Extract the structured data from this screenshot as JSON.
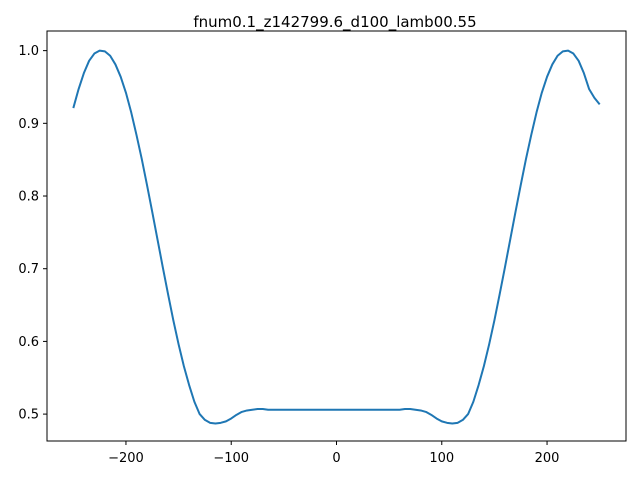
{
  "chart_data": {
    "type": "line",
    "title": "fnum0.1_z142799.6_d100_lamb00.55",
    "xlabel": "",
    "ylabel": "",
    "xlim": [
      -275,
      275
    ],
    "ylim": [
      0.463,
      1.027
    ],
    "grid": false,
    "legend": "none",
    "x_ticks": [
      -200,
      -100,
      0,
      100,
      200
    ],
    "x_tick_labels": [
      "−200",
      "−100",
      "0",
      "100",
      "200"
    ],
    "y_ticks": [
      0.5,
      0.6,
      0.7,
      0.8,
      0.9,
      1.0
    ],
    "y_tick_labels": [
      "0.5",
      "0.6",
      "0.7",
      "0.8",
      "0.9",
      "1.0"
    ],
    "series": [
      {
        "color": "#1f77b4",
        "x": [
          -250,
          -245,
          -240,
          -235,
          -230,
          -225,
          -220,
          -215,
          -210,
          -205,
          -200,
          -195,
          -190,
          -185,
          -180,
          -175,
          -170,
          -165,
          -160,
          -155,
          -150,
          -145,
          -140,
          -135,
          -130,
          -125,
          -120,
          -115,
          -110,
          -105,
          -100,
          -95,
          -90,
          -85,
          -80,
          -75,
          -70,
          -65,
          -60,
          -55,
          -50,
          -45,
          -40,
          -35,
          -30,
          -25,
          -20,
          -15,
          -10,
          -5,
          0,
          5,
          10,
          15,
          20,
          25,
          30,
          35,
          40,
          45,
          50,
          55,
          60,
          65,
          70,
          75,
          80,
          85,
          90,
          95,
          100,
          105,
          110,
          115,
          120,
          125,
          130,
          135,
          140,
          145,
          150,
          155,
          160,
          165,
          170,
          175,
          180,
          185,
          190,
          195,
          200,
          205,
          210,
          215,
          220,
          225,
          230,
          235,
          240,
          245,
          250
        ],
        "y": [
          0.921,
          0.947,
          0.969,
          0.986,
          0.996,
          1.0,
          0.999,
          0.993,
          0.981,
          0.964,
          0.942,
          0.915,
          0.884,
          0.851,
          0.815,
          0.778,
          0.74,
          0.702,
          0.665,
          0.629,
          0.596,
          0.566,
          0.54,
          0.517,
          0.5,
          0.492,
          0.488,
          0.487,
          0.488,
          0.49,
          0.494,
          0.499,
          0.503,
          0.505,
          0.506,
          0.507,
          0.507,
          0.506,
          0.506,
          0.506,
          0.506,
          0.506,
          0.506,
          0.506,
          0.506,
          0.506,
          0.506,
          0.506,
          0.506,
          0.506,
          0.506,
          0.506,
          0.506,
          0.506,
          0.506,
          0.506,
          0.506,
          0.506,
          0.506,
          0.506,
          0.506,
          0.506,
          0.506,
          0.507,
          0.507,
          0.506,
          0.505,
          0.503,
          0.499,
          0.494,
          0.49,
          0.488,
          0.487,
          0.488,
          0.492,
          0.5,
          0.517,
          0.54,
          0.566,
          0.596,
          0.629,
          0.665,
          0.702,
          0.74,
          0.778,
          0.815,
          0.851,
          0.884,
          0.915,
          0.942,
          0.964,
          0.981,
          0.993,
          0.999,
          1.0,
          0.996,
          0.986,
          0.969,
          0.947,
          0.935,
          0.926
        ]
      }
    ]
  }
}
